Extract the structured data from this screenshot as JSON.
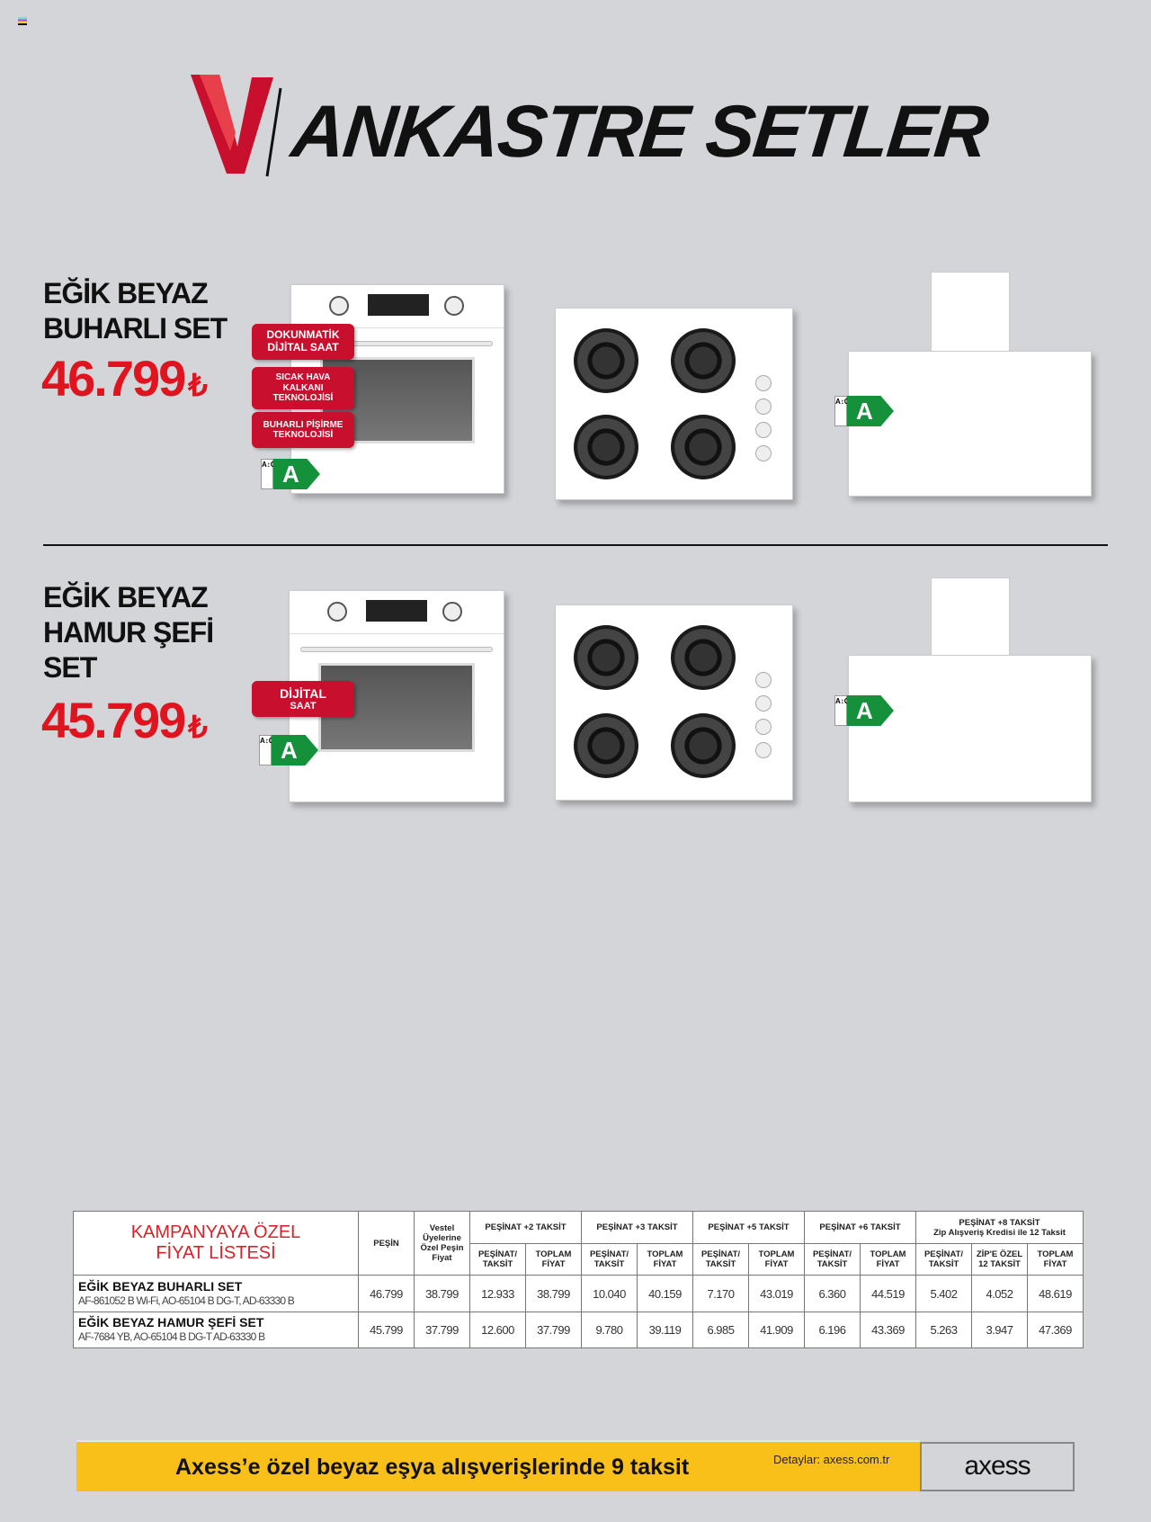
{
  "header": {
    "title": "ANKASTRE SETLER",
    "logo": "V"
  },
  "sets": [
    {
      "title_lines": [
        "EĞİK BEYAZ",
        "BUHARLI SET"
      ],
      "price": "46.799",
      "currency": "₺",
      "badges": [
        [
          "DOKUNMATİK",
          "DİJİTAL SAAT"
        ],
        [
          "SICAK HAVA",
          "KALKANI",
          "TEKNOLOJİSİ"
        ],
        [
          "BUHARLI PİŞİRME",
          "TEKNOLOJİSİ"
        ]
      ],
      "energy_class": "A",
      "energy_scale": "A↕G"
    },
    {
      "title_lines": [
        "EĞİK BEYAZ",
        "HAMUR ŞEFİ",
        "SET"
      ],
      "price": "45.799",
      "currency": "₺",
      "badges": [
        [
          "DİJİTAL",
          "SAAT"
        ]
      ],
      "energy_class": "A",
      "energy_scale": "A↕G"
    }
  ],
  "table": {
    "title_lines": [
      "KAMPANYAYA ÖZEL",
      "FİYAT LİSTESİ"
    ],
    "col_pesin": "PEŞİN",
    "col_vestel": "Vestel Üyelerine Özel Peşin Fiyat",
    "groups": [
      "PEŞİNAT +2 TAKSİT",
      "PEŞİNAT +3 TAKSİT",
      "PEŞİNAT +5 TAKSİT",
      "PEŞİNAT +6 TAKSİT"
    ],
    "group8": [
      "PEŞİNAT +8 TAKSİT",
      "Zip Alışveriş Kredisi ile 12 Taksit"
    ],
    "sub_pt": "PEŞİNAT/ TAKSİT",
    "sub_tf": "TOPLAM FİYAT",
    "sub_zip": "ZİP'E ÖZEL 12 TAKSİT",
    "rows": [
      {
        "name": "EĞİK BEYAZ BUHARLI SET",
        "models": "AF-861052 B Wi-Fi, AO-65104 B DG-T, AD-63330 B",
        "values": [
          "46.799",
          "38.799",
          "12.933",
          "38.799",
          "10.040",
          "40.159",
          "7.170",
          "43.019",
          "6.360",
          "44.519",
          "5.402",
          "4.052",
          "48.619"
        ]
      },
      {
        "name": "EĞİK BEYAZ HAMUR ŞEFİ SET",
        "models": "AF-7684 YB, AO-65104 B DG-T AD-63330 B",
        "values": [
          "45.799",
          "37.799",
          "12.600",
          "37.799",
          "9.780",
          "39.119",
          "6.985",
          "41.909",
          "6.196",
          "43.369",
          "5.263",
          "3.947",
          "47.369"
        ]
      }
    ]
  },
  "banner": {
    "message": "Axess’e özel beyaz eşya alışverişlerinde 9 taksit",
    "details": "Detaylar: axess.com.tr",
    "brand": "axess",
    "color": "#f9c01a"
  },
  "colors": {
    "red": "#e0141e",
    "energy_green": "#14913a"
  }
}
